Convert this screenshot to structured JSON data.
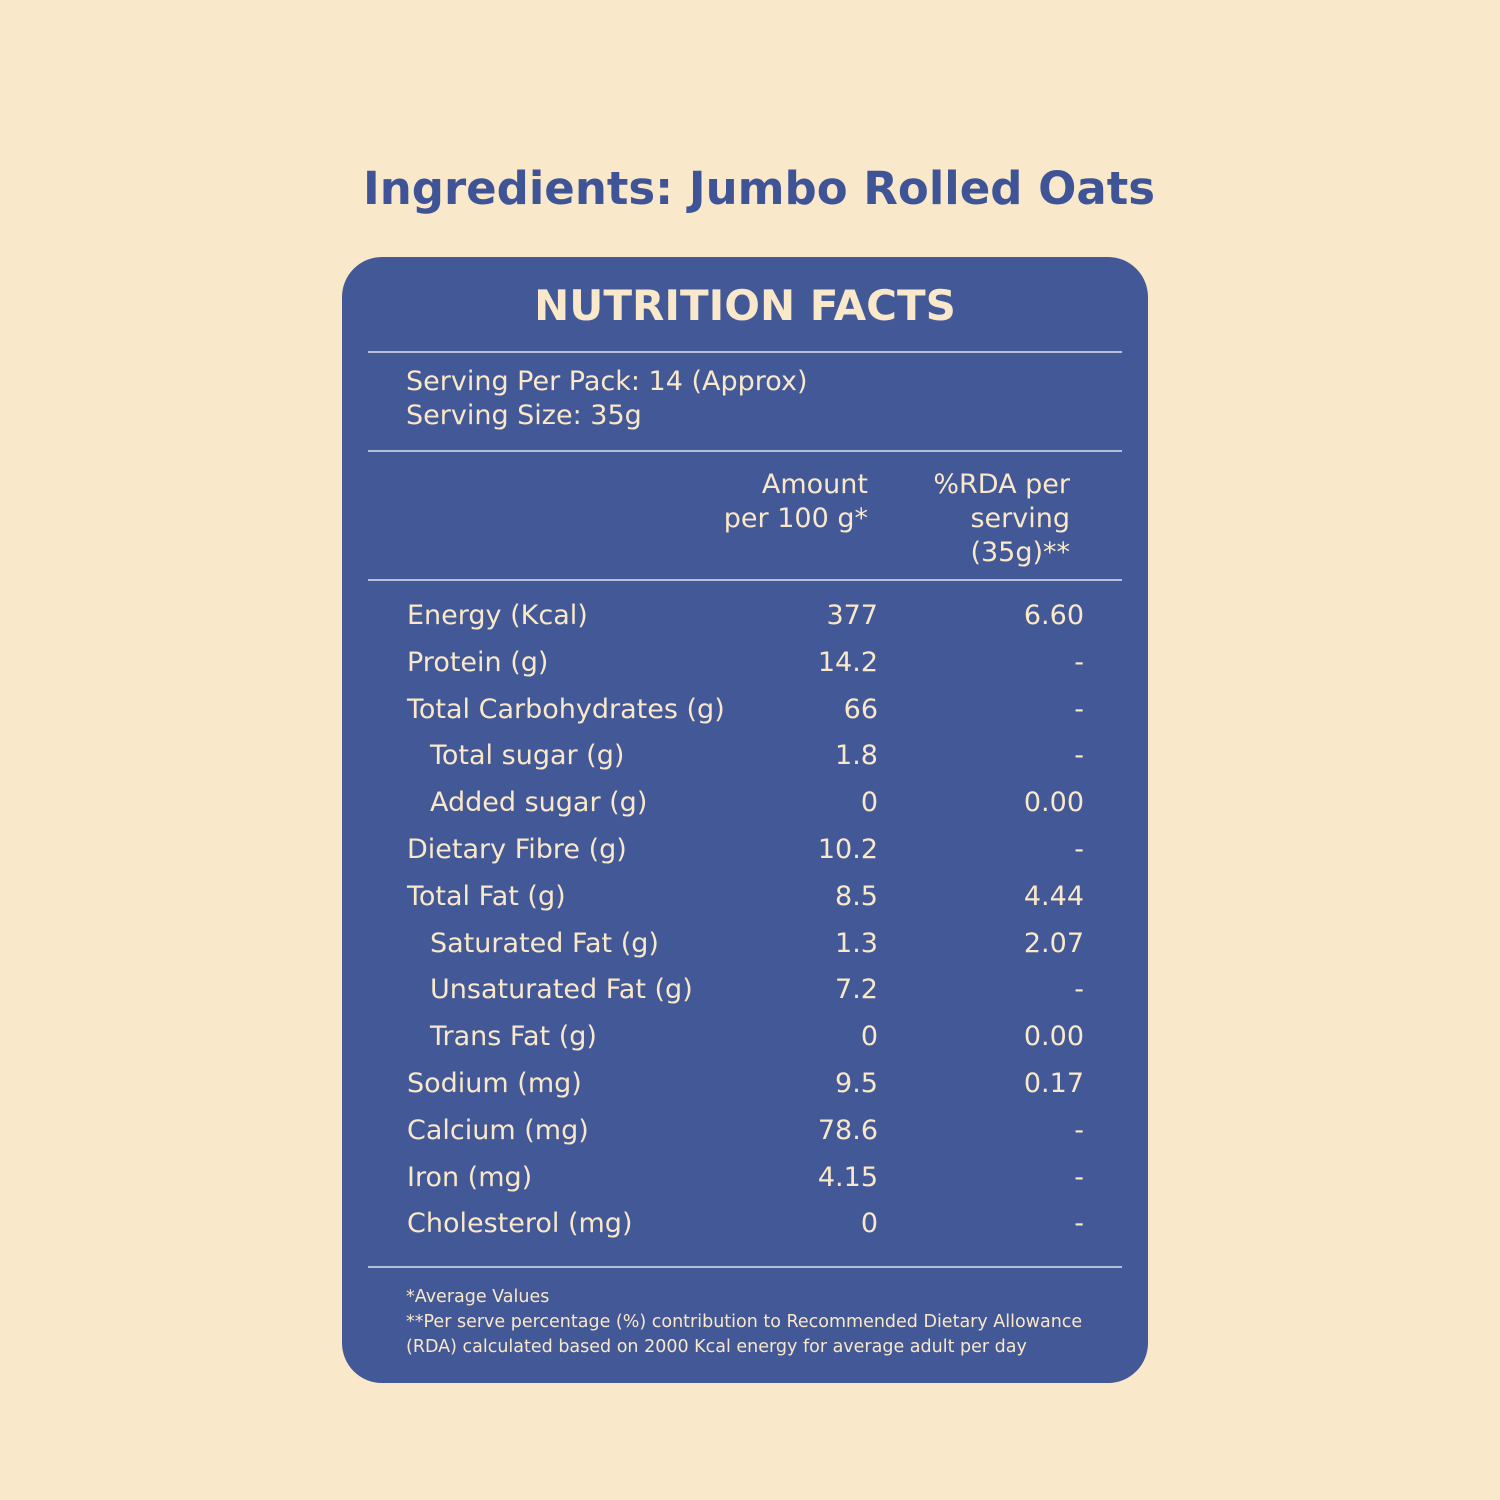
{
  "title": "Ingredients: Jumbo Rolled Oats",
  "card": {
    "heading": "NUTRITION FACTS",
    "serving": [
      "Serving Per Pack: 14 (Approx)",
      "Serving Size: 35g"
    ],
    "columns": [
      {
        "lines": [
          "Amount",
          "per 100 g*"
        ]
      },
      {
        "lines": [
          "%RDA per",
          "serving",
          "(35g)**"
        ]
      }
    ],
    "rows": [
      {
        "name": "Energy (Kcal)",
        "amount": "377",
        "rda": "6.60"
      },
      {
        "name": "Protein (g)",
        "amount": "14.2",
        "rda": "-"
      },
      {
        "name": "Total Carbohydrates (g)",
        "amount": "66",
        "rda": "-"
      },
      {
        "name": "Total sugar (g)",
        "amount": "1.8",
        "rda": "-",
        "sub": true
      },
      {
        "name": "Added sugar (g)",
        "amount": "0",
        "rda": "0.00",
        "sub": true
      },
      {
        "name": "Dietary Fibre (g)",
        "amount": "10.2",
        "rda": "-"
      },
      {
        "name": "Total Fat (g)",
        "amount": "8.5",
        "rda": "4.44"
      },
      {
        "name": "Saturated Fat (g)",
        "amount": "1.3",
        "rda": "2.07",
        "sub": true
      },
      {
        "name": "Unsaturated Fat (g)",
        "amount": "7.2",
        "rda": "-",
        "sub": true
      },
      {
        "name": "Trans Fat (g)",
        "amount": "0",
        "rda": "0.00",
        "sub": true
      },
      {
        "name": "Sodium (mg)",
        "amount": "9.5",
        "rda": "0.17"
      },
      {
        "name": "Calcium (mg)",
        "amount": "78.6",
        "rda": "-"
      },
      {
        "name": "Iron (mg)",
        "amount": "4.15",
        "rda": "-"
      },
      {
        "name": "Cholesterol (mg)",
        "amount": "0",
        "rda": "-"
      }
    ],
    "footnotes": [
      "*Average Values",
      "**Per serve percentage (%) contribution to Recommended Dietary Allowance",
      "(RDA) calculated based on 2000 Kcal energy for average adult per day"
    ]
  }
}
